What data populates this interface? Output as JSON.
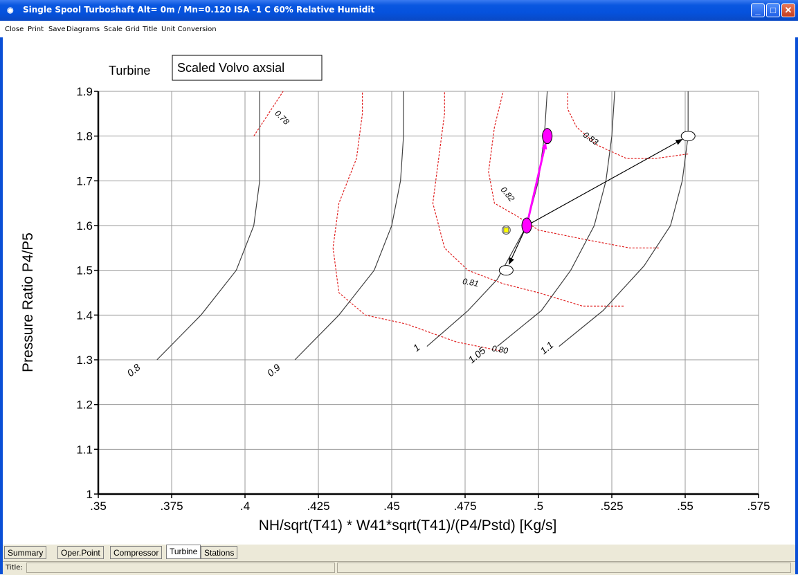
{
  "window": {
    "title": "Single Spool Turboshaft Alt=   0m / Mn=0.120 ISA -1 C    60% Relative Humidit",
    "icon": "app-icon",
    "controls": [
      "minimize-icon",
      "maximize-icon",
      "close-icon"
    ]
  },
  "menu": {
    "items": [
      "Close",
      "Print",
      "Save",
      "Diagrams",
      "Scale",
      "Grid",
      "Title",
      "Unit Conversion"
    ]
  },
  "tabs": {
    "items": [
      "Summary",
      "Oper.Point",
      "Compressor",
      "Turbine",
      "Stations"
    ],
    "active": "Turbine"
  },
  "status": {
    "label": "Title:"
  },
  "chart_data": {
    "type": "line",
    "component_label": "Turbine",
    "map_name": "Scaled Volvo axsial",
    "xlabel": "NH/sqrt(T41) * W41*sqrt(T41)/(P4/Pstd) [Kg/s]",
    "ylabel": "Pressure Ratio P4/P5",
    "xlim": [
      0.35,
      0.575
    ],
    "ylim": [
      1.0,
      1.9
    ],
    "x_ticks": [
      ".35",
      ".375",
      ".4",
      ".425",
      ".45",
      ".475",
      ".5",
      ".525",
      ".55",
      ".575"
    ],
    "y_ticks": [
      "1",
      "1.1",
      "1.2",
      "1.3",
      "1.4",
      "1.5",
      "1.6",
      "1.7",
      "1.8",
      "1.9"
    ],
    "grid": true,
    "speed_lines": [
      {
        "label": "0.8",
        "points": [
          [
            0.37,
            1.3
          ],
          [
            0.385,
            1.4
          ],
          [
            0.397,
            1.5
          ],
          [
            0.403,
            1.6
          ],
          [
            0.405,
            1.7
          ],
          [
            0.405,
            1.8
          ],
          [
            0.405,
            1.9
          ]
        ]
      },
      {
        "label": "0.9",
        "points": [
          [
            0.417,
            1.3
          ],
          [
            0.432,
            1.4
          ],
          [
            0.444,
            1.5
          ],
          [
            0.45,
            1.6
          ],
          [
            0.453,
            1.7
          ],
          [
            0.454,
            1.8
          ],
          [
            0.454,
            1.9
          ]
        ]
      },
      {
        "label": "1",
        "points": [
          [
            0.462,
            1.33
          ],
          [
            0.476,
            1.41
          ],
          [
            0.486,
            1.48
          ],
          [
            0.496,
            1.6
          ],
          [
            0.5,
            1.7
          ],
          [
            0.502,
            1.8
          ],
          [
            0.503,
            1.9
          ]
        ]
      },
      {
        "label": "1.05",
        "points": [
          [
            0.486,
            1.33
          ],
          [
            0.501,
            1.41
          ],
          [
            0.511,
            1.5
          ],
          [
            0.519,
            1.6
          ],
          [
            0.523,
            1.7
          ],
          [
            0.525,
            1.8
          ],
          [
            0.526,
            1.9
          ]
        ]
      },
      {
        "label": "1.1",
        "points": [
          [
            0.507,
            1.33
          ],
          [
            0.522,
            1.41
          ],
          [
            0.536,
            1.51
          ],
          [
            0.545,
            1.6
          ],
          [
            0.549,
            1.7
          ],
          [
            0.551,
            1.8
          ],
          [
            0.551,
            1.9
          ]
        ]
      }
    ],
    "efficiency_contours": [
      {
        "label": "0.78",
        "points": [
          [
            0.403,
            1.8
          ],
          [
            0.407,
            1.84
          ],
          [
            0.411,
            1.88
          ],
          [
            0.413,
            1.9
          ]
        ]
      },
      {
        "label": "0.80",
        "points": [
          [
            0.487,
            1.32
          ],
          [
            0.472,
            1.34
          ],
          [
            0.455,
            1.38
          ],
          [
            0.441,
            1.4
          ],
          [
            0.432,
            1.45
          ],
          [
            0.43,
            1.55
          ],
          [
            0.432,
            1.65
          ],
          [
            0.438,
            1.75
          ],
          [
            0.44,
            1.85
          ],
          [
            0.44,
            1.9
          ]
        ]
      },
      {
        "label": "0.81",
        "points": [
          [
            0.529,
            1.42
          ],
          [
            0.515,
            1.42
          ],
          [
            0.5,
            1.45
          ],
          [
            0.488,
            1.47
          ],
          [
            0.476,
            1.5
          ],
          [
            0.468,
            1.55
          ],
          [
            0.464,
            1.65
          ],
          [
            0.466,
            1.75
          ],
          [
            0.468,
            1.85
          ],
          [
            0.468,
            1.9
          ]
        ]
      },
      {
        "label": "0.82",
        "points": [
          [
            0.541,
            1.55
          ],
          [
            0.531,
            1.55
          ],
          [
            0.515,
            1.57
          ],
          [
            0.5,
            1.59
          ],
          [
            0.493,
            1.62
          ],
          [
            0.485,
            1.65
          ],
          [
            0.483,
            1.72
          ],
          [
            0.485,
            1.82
          ],
          [
            0.488,
            1.9
          ]
        ]
      },
      {
        "label": "0.83",
        "points": [
          [
            0.551,
            1.76
          ],
          [
            0.54,
            1.75
          ],
          [
            0.53,
            1.75
          ],
          [
            0.52,
            1.78
          ],
          [
            0.513,
            1.82
          ],
          [
            0.51,
            1.86
          ],
          [
            0.51,
            1.9
          ]
        ]
      }
    ],
    "markers": [
      {
        "name": "operating-point",
        "x": 0.496,
        "y": 1.6,
        "color": "#ff00ff"
      },
      {
        "name": "target-point",
        "x": 0.503,
        "y": 1.8,
        "color": "#ff00ff"
      },
      {
        "name": "low-point",
        "x": 0.489,
        "y": 1.5,
        "color": "#ffffff"
      },
      {
        "name": "high-point",
        "x": 0.551,
        "y": 1.8,
        "color": "#ffffff"
      },
      {
        "name": "design-point",
        "x": 0.489,
        "y": 1.59,
        "color": "#ffff00"
      }
    ],
    "arrows": [
      {
        "name": "magenta-arrow",
        "from": [
          0.496,
          1.6
        ],
        "to": [
          0.503,
          1.8
        ],
        "color": "#ff00ff"
      },
      {
        "name": "black-arrow-up",
        "from": [
          0.496,
          1.6
        ],
        "to": [
          0.551,
          1.8
        ],
        "color": "#000000"
      },
      {
        "name": "black-arrow-down",
        "from": [
          0.496,
          1.6
        ],
        "to": [
          0.489,
          1.5
        ],
        "color": "#000000"
      }
    ]
  }
}
